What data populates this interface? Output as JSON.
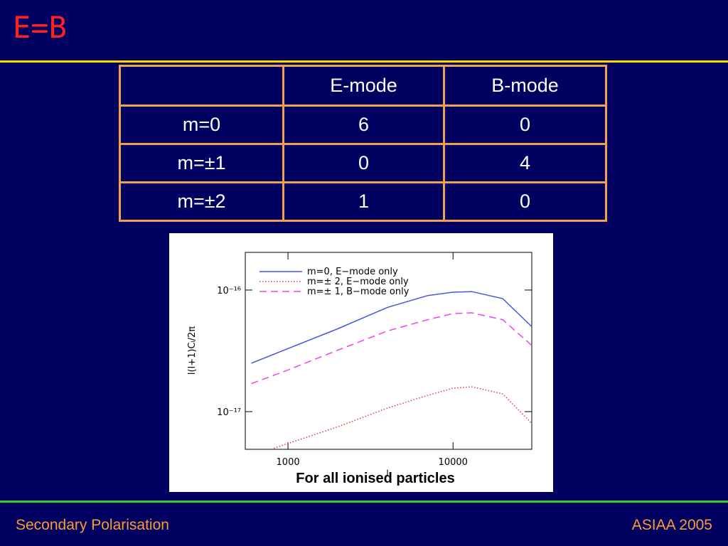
{
  "title": "E=B",
  "table": {
    "header": [
      "E-mode",
      "B-mode"
    ],
    "rows": [
      [
        "m=0",
        6,
        0
      ],
      [
        "m=±1",
        0,
        4
      ],
      [
        "m=±2",
        1,
        0
      ]
    ]
  },
  "chart_data": {
    "type": "line",
    "xlabel": "l",
    "ylabel": "l(l+1)Cₗ/2π",
    "caption": "For all ionised particles",
    "log_x": true,
    "log_y": true,
    "xlim": [
      551,
      30000
    ],
    "ylim": [
      4.9e-18,
      2.04e-16
    ],
    "xticks": [
      1000,
      10000
    ],
    "yticks": [
      {
        "value": 1e-16,
        "label": "10⁻¹⁶"
      },
      {
        "value": 1e-17,
        "label": "10⁻¹⁷"
      }
    ],
    "legend": "upper left",
    "series": [
      {
        "name": "m=0, E−mode only",
        "color": "#4455dd",
        "dash": "solid",
        "x": [
          600,
          1000,
          2000,
          4000,
          7000,
          10000,
          13000,
          20000,
          30000
        ],
        "values": [
          2.5e-17,
          3.3e-17,
          4.8e-17,
          7.2e-17,
          9e-17,
          9.6e-17,
          9.7e-17,
          8.5e-17,
          5e-17
        ]
      },
      {
        "name": "m=± 2, E−mode only",
        "color": "#ee3333",
        "dash": "dotted",
        "x": [
          820,
          2000,
          4000,
          7000,
          10000,
          13000,
          20000,
          30000
        ],
        "values": [
          5e-18,
          7.5e-18,
          1.07e-17,
          1.36e-17,
          1.56e-17,
          1.6e-17,
          1.4e-17,
          8e-18
        ]
      },
      {
        "name": "m=± 1, B−mode only",
        "color": "#ee44ee",
        "dash": "dashed",
        "x": [
          600,
          1000,
          2000,
          4000,
          7000,
          10000,
          13000,
          20000,
          30000
        ],
        "values": [
          1.7e-17,
          2.2e-17,
          3.2e-17,
          4.6e-17,
          5.7e-17,
          6.4e-17,
          6.5e-17,
          5.7e-17,
          3.5e-17
        ]
      }
    ]
  },
  "footer": {
    "left": "Secondary Polarisation",
    "right": "ASIAA 2005"
  }
}
